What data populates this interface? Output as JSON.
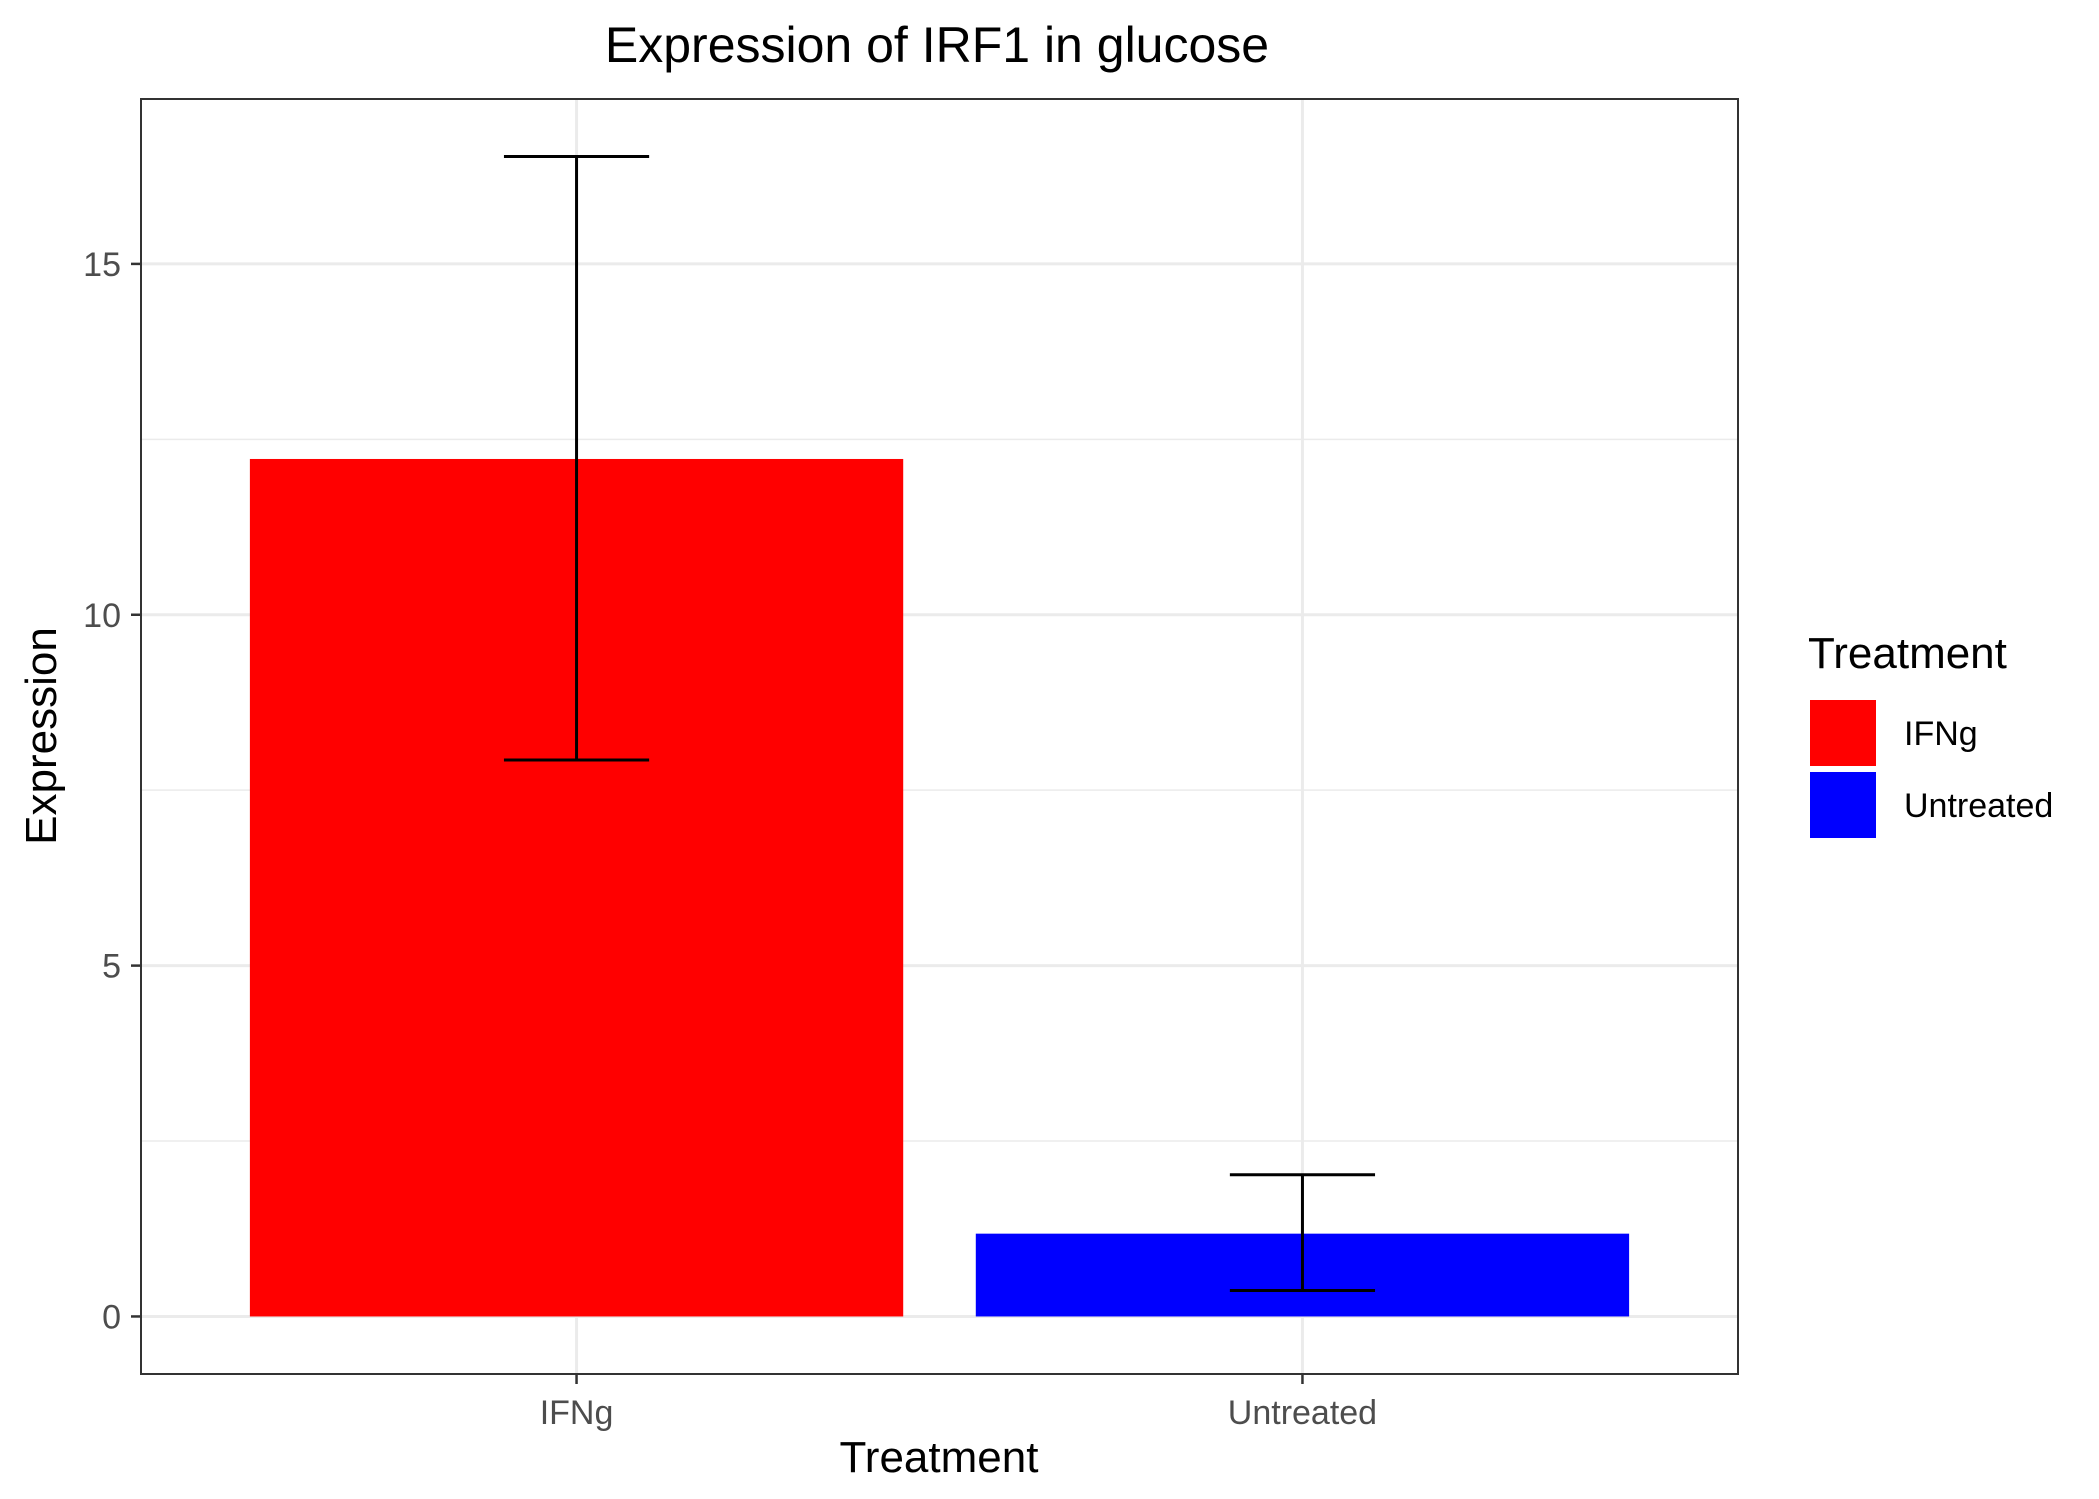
{
  "chart_data": {
    "type": "bar",
    "title": "Expression of IRF1 in glucose",
    "xlabel": "Treatment",
    "ylabel": "Expression",
    "categories": [
      "IFNg",
      "Untreated"
    ],
    "values": [
      12.22,
      1.18
    ],
    "error_bars": [
      {
        "lower": 7.93,
        "upper": 16.53
      },
      {
        "lower": 0.37,
        "upper": 2.02
      }
    ],
    "colors": [
      "#ff0000",
      "#0000ff"
    ],
    "ylim": [
      -0.82,
      17.35
    ],
    "yticks": [
      0,
      5,
      10,
      15
    ],
    "y_minor_gridlines": [
      2.5,
      7.5,
      12.5
    ],
    "grid": true,
    "legend": {
      "title": "Treatment",
      "position": "right",
      "items": [
        {
          "label": "IFNg",
          "color": "#ff0000"
        },
        {
          "label": "Untreated",
          "color": "#0000ff"
        }
      ]
    }
  }
}
